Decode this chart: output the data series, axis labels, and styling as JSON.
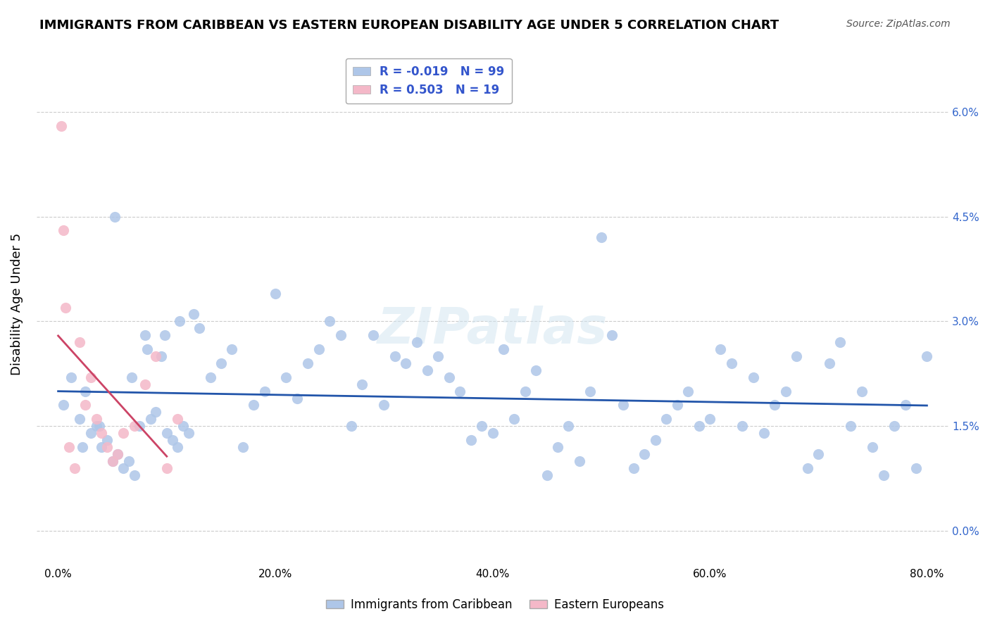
{
  "title": "IMMIGRANTS FROM CARIBBEAN VS EASTERN EUROPEAN DISABILITY AGE UNDER 5 CORRELATION CHART",
  "source": "Source: ZipAtlas.com",
  "ylabel": "Disability Age Under 5",
  "xlabel_ticks": [
    "0.0%",
    "20.0%",
    "40.0%",
    "60.0%",
    "80.0%"
  ],
  "ytick_labels": [
    "0.0%",
    "1.5%",
    "3.0%",
    "4.5%",
    "6.0%"
  ],
  "ytick_values": [
    0.0,
    1.5,
    3.0,
    4.5,
    6.0
  ],
  "xlim": [
    0.0,
    80.0
  ],
  "ylim": [
    -0.5,
    7.0
  ],
  "blue_R": -0.019,
  "blue_N": 99,
  "pink_R": 0.503,
  "pink_N": 19,
  "blue_color": "#aec6e8",
  "pink_color": "#f4b8c8",
  "blue_line_color": "#2255aa",
  "pink_line_color": "#cc4466",
  "watermark": "ZIPatlas",
  "blue_scatter_x": [
    0.5,
    1.2,
    2.0,
    2.5,
    3.0,
    3.5,
    4.0,
    4.5,
    5.0,
    5.5,
    6.0,
    6.5,
    7.0,
    7.5,
    8.0,
    8.5,
    9.0,
    9.5,
    10.0,
    10.5,
    11.0,
    11.5,
    12.0,
    12.5,
    13.0,
    14.0,
    15.0,
    16.0,
    17.0,
    18.0,
    19.0,
    20.0,
    21.0,
    22.0,
    23.0,
    24.0,
    25.0,
    26.0,
    27.0,
    28.0,
    29.0,
    30.0,
    31.0,
    32.0,
    33.0,
    34.0,
    35.0,
    36.0,
    37.0,
    38.0,
    39.0,
    40.0,
    41.0,
    42.0,
    43.0,
    44.0,
    45.0,
    46.0,
    47.0,
    48.0,
    49.0,
    50.0,
    51.0,
    52.0,
    53.0,
    54.0,
    55.0,
    56.0,
    57.0,
    58.0,
    59.0,
    60.0,
    61.0,
    62.0,
    63.0,
    64.0,
    65.0,
    66.0,
    67.0,
    68.0,
    69.0,
    70.0,
    71.0,
    72.0,
    73.0,
    74.0,
    75.0,
    76.0,
    77.0,
    78.0,
    79.0,
    80.0,
    2.2,
    3.8,
    5.2,
    6.8,
    8.2,
    9.8,
    11.2
  ],
  "blue_scatter_y": [
    1.8,
    2.2,
    1.6,
    2.0,
    1.4,
    1.5,
    1.2,
    1.3,
    1.0,
    1.1,
    0.9,
    1.0,
    0.8,
    1.5,
    2.8,
    1.6,
    1.7,
    2.5,
    1.4,
    1.3,
    1.2,
    1.5,
    1.4,
    3.1,
    2.9,
    2.2,
    2.4,
    2.6,
    1.2,
    1.8,
    2.0,
    3.4,
    2.2,
    1.9,
    2.4,
    2.6,
    3.0,
    2.8,
    1.5,
    2.1,
    2.8,
    1.8,
    2.5,
    2.4,
    2.7,
    2.3,
    2.5,
    2.2,
    2.0,
    1.3,
    1.5,
    1.4,
    2.6,
    1.6,
    2.0,
    2.3,
    0.8,
    1.2,
    1.5,
    1.0,
    2.0,
    4.2,
    2.8,
    1.8,
    0.9,
    1.1,
    1.3,
    1.6,
    1.8,
    2.0,
    1.5,
    1.6,
    2.6,
    2.4,
    1.5,
    2.2,
    1.4,
    1.8,
    2.0,
    2.5,
    0.9,
    1.1,
    2.4,
    2.7,
    1.5,
    2.0,
    1.2,
    0.8,
    1.5,
    1.8,
    0.9,
    2.5,
    1.2,
    1.5,
    4.5,
    2.2,
    2.6,
    2.8,
    3.0
  ],
  "pink_scatter_x": [
    0.3,
    0.5,
    0.7,
    1.0,
    1.5,
    2.0,
    2.5,
    3.0,
    3.5,
    4.0,
    4.5,
    5.0,
    5.5,
    6.0,
    7.0,
    8.0,
    9.0,
    10.0,
    11.0
  ],
  "pink_scatter_y": [
    5.8,
    4.3,
    3.2,
    1.2,
    0.9,
    2.7,
    1.8,
    2.2,
    1.6,
    1.4,
    1.2,
    1.0,
    1.1,
    1.4,
    1.5,
    2.1,
    2.5,
    0.9,
    1.6
  ]
}
